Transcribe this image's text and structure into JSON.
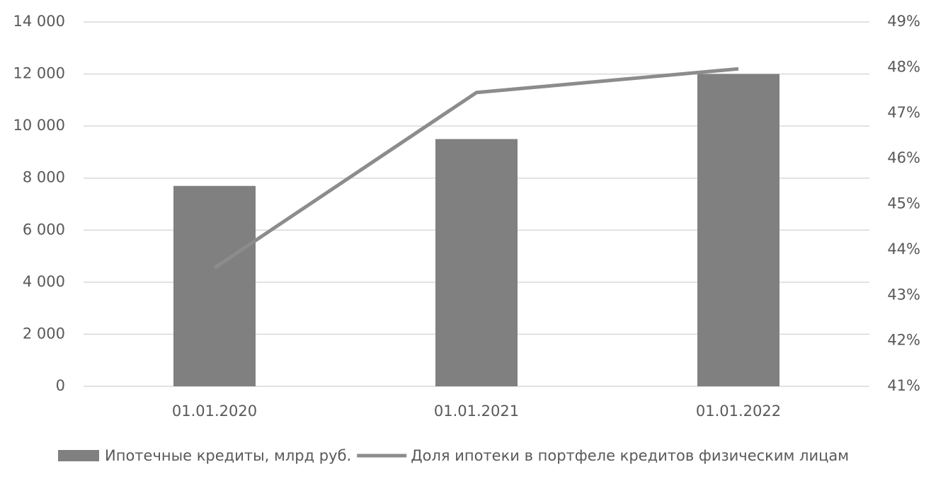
{
  "chart_data": {
    "type": "bar-line",
    "categories": [
      "01.01.2020",
      "01.01.2021",
      "01.01.2022"
    ],
    "series": [
      {
        "name": "Ипотечные кредиты, млрд руб.",
        "type": "bar",
        "color": "#808080",
        "values": [
          7700,
          9500,
          12000
        ]
      },
      {
        "name": "Доля ипотеки в портфеле кредитов физическим лицам",
        "type": "line",
        "axis": "y2",
        "color": "#8c8c8c",
        "values": [
          43.6,
          47.45,
          47.97
        ]
      }
    ],
    "ylim": [
      0,
      14000
    ],
    "yticks": [
      0,
      {
        "value": 2000,
        "label": "2 000"
      },
      {
        "value": 4000,
        "label": "4 000"
      },
      {
        "value": 6000,
        "label": "6 000"
      },
      {
        "value": 8000,
        "label": "8 000"
      },
      {
        "value": 10000,
        "label": "10 000"
      },
      {
        "value": 12000,
        "label": "12 000"
      },
      {
        "value": 14000,
        "label": "14 000"
      }
    ],
    "y2lim": [
      41,
      49
    ],
    "y2ticks": [
      {
        "value": 41,
        "label": "41%"
      },
      {
        "value": 42,
        "label": "42%"
      },
      {
        "value": 43,
        "label": "43%"
      },
      {
        "value": 44,
        "label": "44%"
      },
      {
        "value": 45,
        "label": "45%"
      },
      {
        "value": 46,
        "label": "46%"
      },
      {
        "value": 47,
        "label": "47%"
      },
      {
        "value": 48,
        "label": "48%"
      },
      {
        "value": 49,
        "label": "49%"
      }
    ],
    "grid": true,
    "legend": "bottom"
  }
}
